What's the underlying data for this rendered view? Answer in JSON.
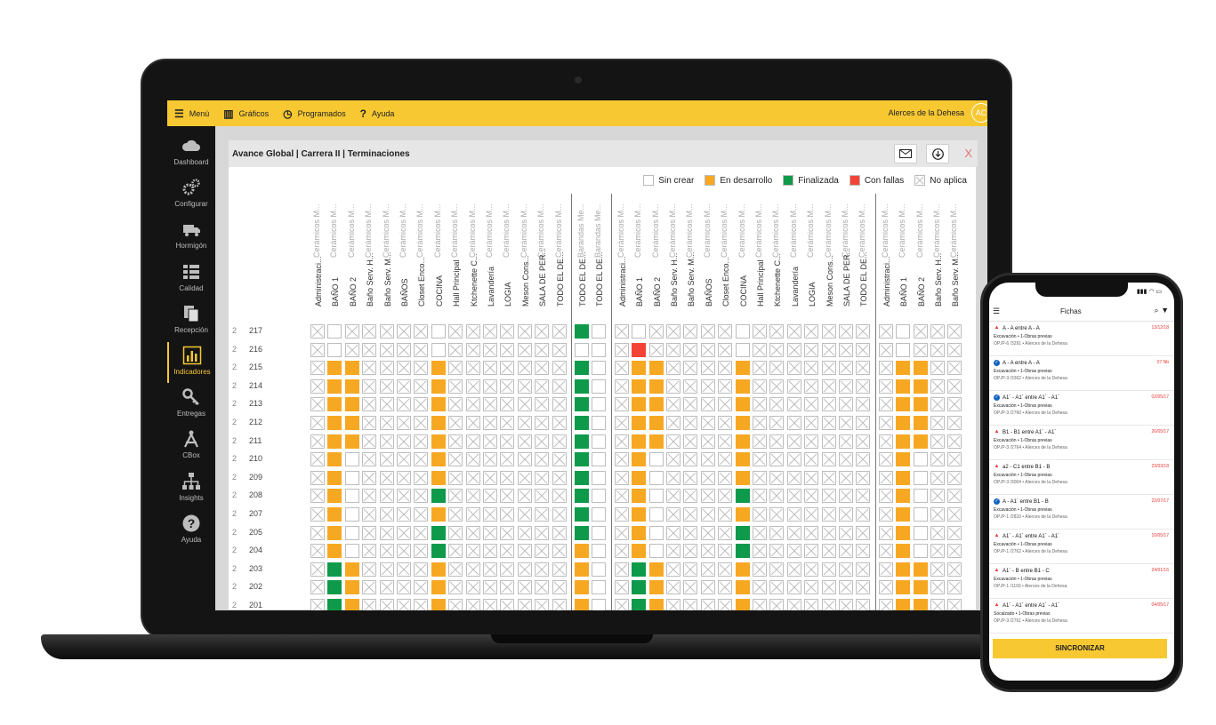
{
  "topbar": {
    "menu": "Menú",
    "graficos": "Gráficos",
    "programados": "Programados",
    "ayuda": "Ayuda",
    "user": "Alerces de la Dehesa",
    "avatar": "AC"
  },
  "sidebar": [
    {
      "label": "Dashboard",
      "icon": "cloud-icon"
    },
    {
      "label": "Configurar",
      "icon": "gears-icon"
    },
    {
      "label": "Hormigón",
      "icon": "truck-icon"
    },
    {
      "label": "Calidad",
      "icon": "list-icon"
    },
    {
      "label": "Recepción",
      "icon": "documents-icon"
    },
    {
      "label": "Indicadores",
      "icon": "bar-chart-icon",
      "active": true
    },
    {
      "label": "Entregas",
      "icon": "key-icon"
    },
    {
      "label": "CBox",
      "icon": "compass-icon"
    },
    {
      "label": "Insights",
      "icon": "hierarchy-icon"
    },
    {
      "label": "Ayuda",
      "icon": "help-icon"
    }
  ],
  "panel": {
    "title": "Avance Global | Carrera II | Terminaciones",
    "close": "X"
  },
  "legend": [
    {
      "label": "Sin crear",
      "color": "#ffffff"
    },
    {
      "label": "En desarrollo",
      "color": "#f7a823"
    },
    {
      "label": "Finalizada",
      "color": "#0e9a4a"
    },
    {
      "label": "Con fallas",
      "color": "#f44336"
    },
    {
      "label": "No aplica",
      "color": "#e8e8e8"
    }
  ],
  "columns": [
    {
      "top": "Cerámicos M...",
      "label": "Administraci..."
    },
    {
      "top": "Cerámicos M...",
      "label": "BAÑO 1"
    },
    {
      "top": "Cerámicos M...",
      "label": "BAÑO 2"
    },
    {
      "top": "Cerámicos M...",
      "label": "Baño Serv. H..."
    },
    {
      "top": "Cerámicos M...",
      "label": "Baño Serv. M..."
    },
    {
      "top": "Cerámicos M...",
      "label": "BAÑOS"
    },
    {
      "top": "Cerámicos M...",
      "label": "Closet Enco..."
    },
    {
      "top": "Cerámicos M...",
      "label": "COCINA"
    },
    {
      "top": "Cerámicos M...",
      "label": "Hall Principal"
    },
    {
      "top": "Cerámicos M...",
      "label": "Ktchenette C..."
    },
    {
      "top": "Cerámicos M...",
      "label": "Lavandería"
    },
    {
      "top": "Cerámicos M...",
      "label": "LOGIA"
    },
    {
      "top": "Cerámicos M...",
      "label": "Meson Cons..."
    },
    {
      "top": "Cerámicos M...",
      "label": "SALA DE PER..."
    },
    {
      "top": "Cerámicos M...",
      "label": "TODO EL DE..."
    },
    {
      "top": "Barandas Me...",
      "label": "TODO EL DE..."
    },
    {
      "top": "Barandas Me...",
      "label": "TODO EL DE..."
    },
    {
      "top": "Cerámicos M...",
      "label": "Administraci..."
    },
    {
      "top": "Cerámicos M...",
      "label": "BAÑO 1"
    },
    {
      "top": "Cerámicos M...",
      "label": "BAÑO 2"
    },
    {
      "top": "Cerámicos M...",
      "label": "Baño Serv. H..."
    },
    {
      "top": "Cerámicos M...",
      "label": "Baño Serv. M..."
    },
    {
      "top": "Cerámicos M...",
      "label": "BAÑOS"
    },
    {
      "top": "Cerámicos M...",
      "label": "Closet Enco..."
    },
    {
      "top": "Cerámicos M...",
      "label": "COCINA"
    },
    {
      "top": "Cerámicos M...",
      "label": "Hall Principal"
    },
    {
      "top": "Cerámicos M...",
      "label": "Ktchenette C..."
    },
    {
      "top": "Cerámicos M...",
      "label": "Lavandería"
    },
    {
      "top": "Cerámicos M...",
      "label": "LOGIA"
    },
    {
      "top": "Cerámicos M...",
      "label": "Meson Cons..."
    },
    {
      "top": "Cerámicos M...",
      "label": "SALA DE PER..."
    },
    {
      "top": "Cerámicos M...",
      "label": "TODO EL DE..."
    },
    {
      "top": "Cerámicos M...",
      "label": "Administraci..."
    },
    {
      "top": "Cerámicos M...",
      "label": "BAÑO 1"
    },
    {
      "top": "Cerámicos M...",
      "label": "BAÑO 2"
    },
    {
      "top": "Cerámicos M...",
      "label": "Baño Serv. H..."
    },
    {
      "top": "Cerámicos M...",
      "label": "Baño Serv. M..."
    }
  ],
  "rows": [
    {
      "floor": "2",
      "unit": "217",
      "cells": "NWNNNNNWNNNNNNNGWNWNNNNNWNNNNNNNNWNNN"
    },
    {
      "floor": "2",
      "unit": "216",
      "cells": "NWNNNNNWNNNNNNNWWNRNNNNNWNNNNNNNNWNNN"
    },
    {
      "floor": "2",
      "unit": "215",
      "cells": "NYYNNNNYNNNNNNNGWNYYNNNNYNNNNNNNNYYNN"
    },
    {
      "floor": "2",
      "unit": "214",
      "cells": "NYYNNNNYNNNNNNNGWNYYNNNNYNNNNNNNNYYNN"
    },
    {
      "floor": "2",
      "unit": "213",
      "cells": "NYYNNNNYNNNNNNNGWNYYNNNNYNNNNNNNNYYNN"
    },
    {
      "floor": "2",
      "unit": "212",
      "cells": "NYYNNNNYNNNNNNNGWNYYNNNNYNNNNNNNNYYNN"
    },
    {
      "floor": "2",
      "unit": "211",
      "cells": "NYYNNNNYNNNNNNNGWNYYNNNNYNNNNNNNNYYNN"
    },
    {
      "floor": "2",
      "unit": "210",
      "cells": "NYWNNNNYNNNNNNNGWNYWNNNNYNNNNNNNNYWNN"
    },
    {
      "floor": "2",
      "unit": "209",
      "cells": "NYWNNNNYNNNNNNNGWNYWNNNNYNNNNNNNNYWNN"
    },
    {
      "floor": "2",
      "unit": "208",
      "cells": "NYWNNNNGNNNNNNNGWNYWNNNNGNNNNNNNNYWNN"
    },
    {
      "floor": "2",
      "unit": "207",
      "cells": "NYWNNNNYNNNNNNNGWNYWNNNNYNNNNNNNNYWNN"
    },
    {
      "floor": "2",
      "unit": "205",
      "cells": "NYWNNNNGNNNNNNNGWNYWNNNNGNNNNNNNNYWNN"
    },
    {
      "floor": "2",
      "unit": "204",
      "cells": "NYWNNNNGNNNNNNNYWNYWNNNNGNNNNNNNNYWNN"
    },
    {
      "floor": "2",
      "unit": "203",
      "cells": "NGYNNNNYNNNNNNNYWNGYNNNNYNNNNNNNNYYNN"
    },
    {
      "floor": "2",
      "unit": "202",
      "cells": "NGYNNNNYNNNNNNNYWNGYNNNNYNNNNNNNNYYNN"
    },
    {
      "floor": "2",
      "unit": "201",
      "cells": "NGYNNNNYNNNNNNNYWNGYNNNNYNNNNNNNNYYNN"
    }
  ],
  "phone": {
    "title": "Fichas",
    "sync_label": "SINCRONIZAR",
    "items": [
      {
        "status": "warn",
        "title": "A - A entre A - A",
        "date": "13/12/18",
        "sub": "Excavación • 1-Obras previas",
        "ref": "OP./P-6 /3291 • Alerces de la Dehesa"
      },
      {
        "status": "ok",
        "title": "A - A entre A - A",
        "date": "07 Nb",
        "sub": "Excavación • 1-Obras previas",
        "ref": "OP./P-3 /3362 • Alerces de la Dehesa"
      },
      {
        "status": "ok",
        "title": "A1´ - A1´ entre A1´ - A1´",
        "date": "02/05/17",
        "sub": "Excavación • 1-Obras previas",
        "ref": "OP./P-3 /2760 • Alerces de la Dehesa"
      },
      {
        "status": "warn",
        "title": "B1 - B1 entre A1´ - A1´",
        "date": "26/05/17",
        "sub": "Excavación • 1-Obras previas",
        "ref": "OP./P-3 /2764 • Alerces de la Dehesa"
      },
      {
        "status": "warn",
        "title": "a2 - C1 entre B1 - B",
        "date": "23/03/18",
        "sub": "Excavación • 1-Obras previas",
        "ref": "OP./P-3 /3004 • Alerces de la Dehesa"
      },
      {
        "status": "ok",
        "title": "A - A1´ entre B1 - B",
        "date": "22/07/17",
        "sub": "Excavación • 1-Obras previas",
        "ref": "OP./P-1 /2810 • Alerces de la Dehesa"
      },
      {
        "status": "warn",
        "title": "A1´ - A1´ entre A1´ - A1´",
        "date": "10/05/17",
        "sub": "Excavación • 1-Obras previas",
        "ref": "OP./P-1 /2762 • Alerces de la Dehesa"
      },
      {
        "status": "warn",
        "title": "A1´ - B entre B1 - C",
        "date": "24/01/16",
        "sub": "Excavación • 1-Obras previas",
        "ref": "OP./P-1 /1193 • Alerces de la Dehesa"
      },
      {
        "status": "warn",
        "title": "A1´ - A1´ entre A1´ - A1´",
        "date": "04/05/17",
        "sub": "Socalzado • 1-Obras previas",
        "ref": "OP./P-3 /2761 • Alerces de la Dehesa"
      }
    ]
  },
  "colors": {
    "brand": "#f7c832",
    "en_desarrollo": "#f7a823",
    "finalizada": "#0e9a4a",
    "con_fallas": "#f44336",
    "sidebar_bg": "#141414"
  }
}
